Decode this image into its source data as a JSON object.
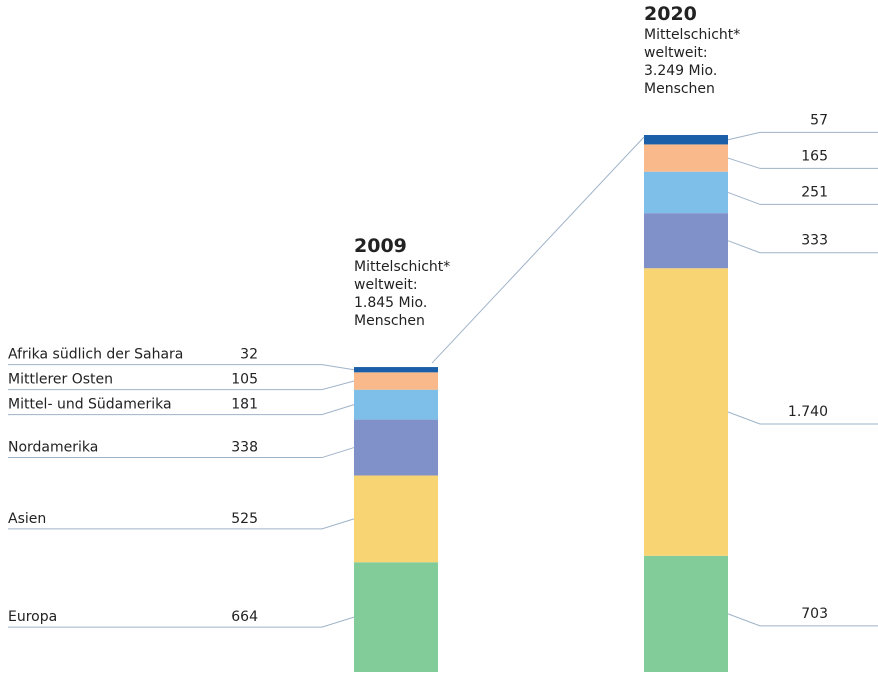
{
  "chart_data": {
    "type": "stacked-bar",
    "categories": [
      "2009",
      "2020"
    ],
    "annotations": [
      [
        "Mittelschicht*",
        "weltweit:",
        "1.845 Mio.",
        "Menschen"
      ],
      [
        "Mittelschicht*",
        "weltweit:",
        "3.249 Mio.",
        "Menschen"
      ]
    ],
    "series": [
      {
        "name": "Europa",
        "color": "#82cc9a",
        "values": [
          664,
          703
        ]
      },
      {
        "name": "Asien",
        "color": "#f8d473",
        "values": [
          525,
          1740
        ],
        "value_labels": [
          "525",
          "1.740"
        ]
      },
      {
        "name": "Nordamerika",
        "color": "#8090c9",
        "values": [
          338,
          333
        ]
      },
      {
        "name": "Mittel- und Südamerika",
        "color": "#7dbfe8",
        "values": [
          181,
          251
        ]
      },
      {
        "name": "Mittlerer Osten",
        "color": "#f9b98a",
        "values": [
          105,
          165
        ]
      },
      {
        "name": "Afrika südlich der Sahara",
        "color": "#1a5fa8",
        "values": [
          32,
          57
        ]
      }
    ]
  }
}
